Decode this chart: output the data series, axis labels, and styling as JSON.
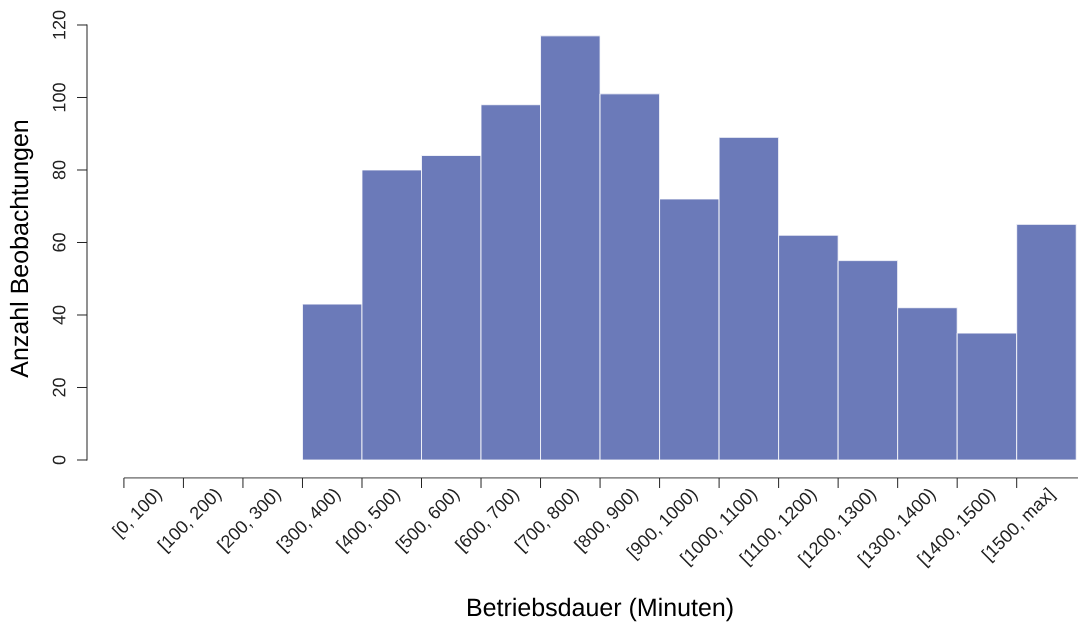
{
  "chart_data": {
    "type": "bar",
    "xlabel": "Betriebsdauer (Minuten)",
    "ylabel": "Anzahl Beobachtungen",
    "categories": [
      "[0, 100)",
      "[100, 200)",
      "[200, 300)",
      "[300, 400)",
      "[400, 500)",
      "[500, 600)",
      "[600, 700)",
      "[700, 800)",
      "[800, 900)",
      "[900, 1000)",
      "[1000, 1100)",
      "[1100, 1200)",
      "[1200, 1300)",
      "[1300, 1400)",
      "[1400, 1500)",
      "[1500, max]"
    ],
    "values": [
      0,
      0,
      0,
      43,
      80,
      84,
      98,
      117,
      101,
      72,
      89,
      62,
      55,
      42,
      35,
      65
    ],
    "color": "#6b7ab9",
    "ylim": [
      0,
      120
    ],
    "yticks": [
      0,
      20,
      40,
      60,
      80,
      100,
      120
    ]
  }
}
